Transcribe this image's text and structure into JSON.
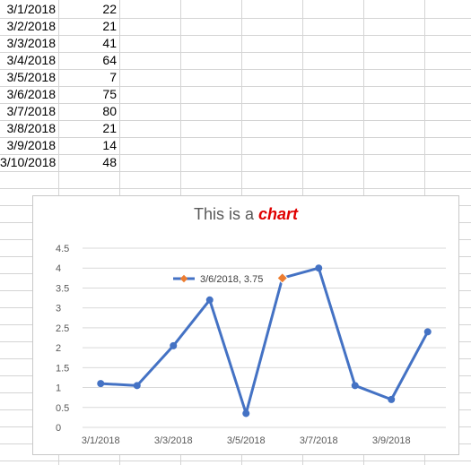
{
  "sheet": {
    "rows": [
      {
        "date": "3/1/2018",
        "value": "22"
      },
      {
        "date": "3/2/2018",
        "value": "21"
      },
      {
        "date": "3/3/2018",
        "value": "41"
      },
      {
        "date": "3/4/2018",
        "value": "64"
      },
      {
        "date": "3/5/2018",
        "value": "7"
      },
      {
        "date": "3/6/2018",
        "value": "75"
      },
      {
        "date": "3/7/2018",
        "value": "80"
      },
      {
        "date": "3/8/2018",
        "value": "21"
      },
      {
        "date": "3/9/2018",
        "value": "14"
      },
      {
        "date": "3/10/2018",
        "value": "48"
      }
    ]
  },
  "chart_data": {
    "type": "line",
    "title_prefix": "This is a ",
    "title_highlight": "chart",
    "x": [
      "3/1/2018",
      "3/2/2018",
      "3/3/2018",
      "3/4/2018",
      "3/5/2018",
      "3/6/2018",
      "3/7/2018",
      "3/8/2018",
      "3/9/2018",
      "3/10/2018"
    ],
    "x_tick_labels": [
      "3/1/2018",
      "3/3/2018",
      "3/5/2018",
      "3/7/2018",
      "3/9/2018"
    ],
    "y_ticks": [
      "0",
      "0.5",
      "1",
      "1.5",
      "2",
      "2.5",
      "3",
      "3.5",
      "4",
      "4.5"
    ],
    "ylim": [
      0,
      4.5
    ],
    "series": [
      {
        "values": [
          1.1,
          1.05,
          2.05,
          3.2,
          0.35,
          3.75,
          4.0,
          1.05,
          0.7,
          2.4
        ]
      }
    ],
    "grid": true,
    "colors": {
      "line": "#4472c4",
      "highlight_marker": "#ed7d31",
      "title_accent": "#e00000"
    },
    "tooltip": {
      "label": "3/6/2018, 3.75",
      "point_index": 5
    }
  }
}
